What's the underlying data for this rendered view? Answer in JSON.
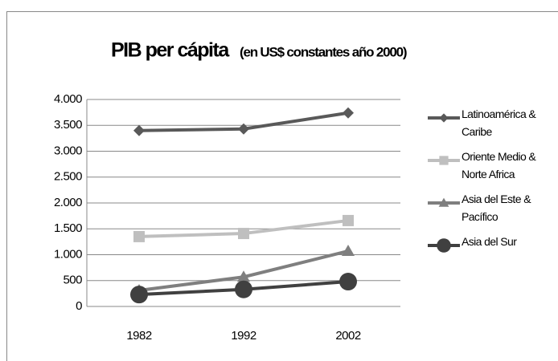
{
  "chart_data": {
    "type": "line",
    "title": "PIB per cápita",
    "subtitle": "(en US$ constantes año 2000)",
    "categories": [
      "1982",
      "1992",
      "2002"
    ],
    "series": [
      {
        "name": "Latinoamérica & Caribe",
        "color": "#595959",
        "marker": "diamond",
        "values": [
          3400,
          3430,
          3740
        ]
      },
      {
        "name": "Oriente Medio & Norte Africa",
        "color": "#bfbfbf",
        "marker": "square",
        "values": [
          1350,
          1410,
          1660
        ]
      },
      {
        "name": "Asia del Este & Pacífico",
        "color": "#7f7f7f",
        "marker": "triangle",
        "values": [
          310,
          570,
          1070
        ]
      },
      {
        "name": "Asia del Sur",
        "color": "#404040",
        "marker": "circle",
        "values": [
          230,
          330,
          480
        ]
      }
    ],
    "ylim": [
      0,
      4000
    ],
    "yticks": [
      0,
      500,
      {
        "value": 1000,
        "label": "1.000"
      },
      {
        "value": 1500,
        "label": "1.500"
      },
      {
        "value": 2000,
        "label": "2.000"
      },
      {
        "value": 2500,
        "label": "2.500"
      },
      {
        "value": 3000,
        "label": "3.000"
      },
      {
        "value": 3500,
        "label": "3.500"
      },
      {
        "value": 4000,
        "label": "4.000"
      }
    ],
    "grid": true,
    "legend": "right"
  }
}
